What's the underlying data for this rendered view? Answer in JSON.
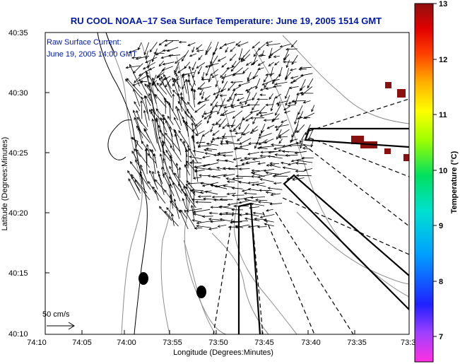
{
  "title": "RU COOL  NOAA–17  Sea Surface Temperature:  June 19, 2005 1514 GMT",
  "current_note": {
    "line1": "Raw Surface Current:",
    "line2": "June 19, 2005 14:00 GMT"
  },
  "scale_label": "50 cm/s",
  "axes": {
    "xlabel": "Longitude (Degrees:Minutes)",
    "ylabel": "Latitude (Degrees:Minutes)",
    "x_ticks": [
      "74:10",
      "74:05",
      "74:00",
      "73:55",
      "73:50",
      "73:45",
      "73:40",
      "73:35",
      "73:3"
    ],
    "y_ticks": [
      "40:35",
      "40:30",
      "40:25",
      "40:20",
      "40:15",
      "40:10"
    ]
  },
  "colorbar": {
    "label": "Temperature (°C)",
    "ticks": [
      "13",
      "12",
      "11",
      "10",
      "9",
      "8",
      "7"
    ]
  },
  "colors": {
    "title": "#0018a8",
    "coast": "#000000",
    "contour": "#8c8c8c",
    "warm_patch": "#8b1010"
  }
}
